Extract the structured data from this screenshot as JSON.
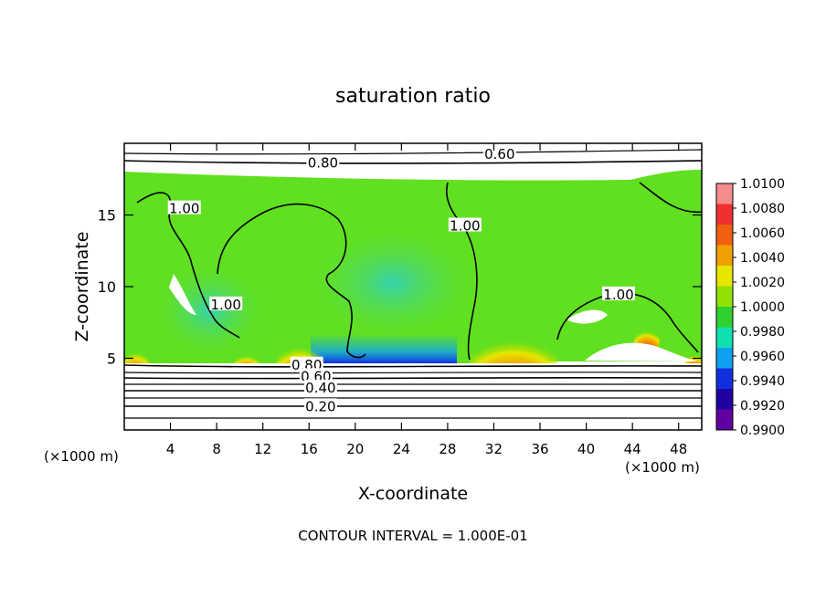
{
  "chart_data": {
    "type": "heatmap",
    "title": "saturation ratio",
    "xlabel": "X-coordinate",
    "ylabel": "Z-coordinate",
    "x_unit_left": "(×1000 m)",
    "x_unit_right": "(×1000 m)",
    "xlim": [
      0,
      50
    ],
    "ylim": [
      0,
      20
    ],
    "x_ticks": [
      4,
      8,
      12,
      16,
      20,
      24,
      28,
      32,
      36,
      40,
      44,
      48
    ],
    "y_ticks": [
      5,
      10,
      15
    ],
    "footer": "CONTOUR INTERVAL = 1.000E-01",
    "colorbar": {
      "levels": [
        "1.0100",
        "1.0080",
        "1.0060",
        "1.0040",
        "1.0020",
        "1.0000",
        "0.9980",
        "0.9960",
        "0.9940",
        "0.9920",
        "0.9900"
      ],
      "colors": [
        "#f48c8c",
        "#f03030",
        "#f06010",
        "#f0a000",
        "#e6e600",
        "#90e000",
        "#30d030",
        "#10e0b0",
        "#10a0f0",
        "#1030e0",
        "#2000a0",
        "#6000a0"
      ]
    },
    "contour_labels": [
      {
        "text": "0.60",
        "x": 32.5,
        "z": 19.3
      },
      {
        "text": "0.80",
        "x": 17.2,
        "z": 18.7
      },
      {
        "text": "1.00",
        "x": 5.2,
        "z": 15.5
      },
      {
        "text": "1.00",
        "x": 29.5,
        "z": 14.3
      },
      {
        "text": "1.00",
        "x": 8.8,
        "z": 8.8
      },
      {
        "text": "1.00",
        "x": 42.8,
        "z": 9.5
      },
      {
        "text": "0.80",
        "x": 15.8,
        "z": 4.6
      },
      {
        "text": "0.60",
        "x": 16.6,
        "z": 3.8
      },
      {
        "text": "0.40",
        "x": 17.0,
        "z": 3.0
      },
      {
        "text": "0.20",
        "x": 17.0,
        "z": 1.7
      }
    ]
  }
}
